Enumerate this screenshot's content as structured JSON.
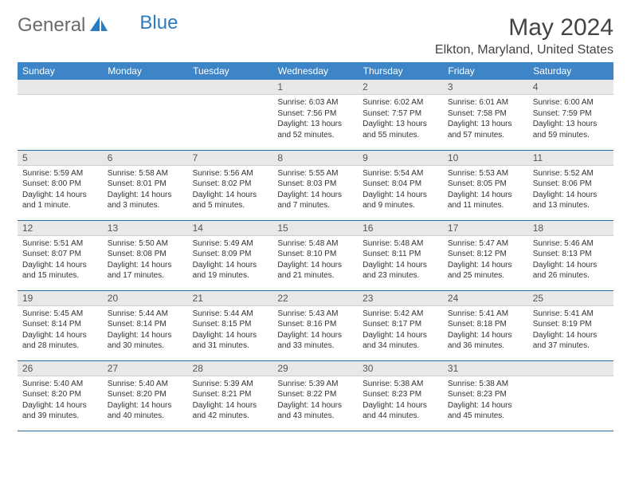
{
  "logo": {
    "general": "General",
    "blue": "Blue"
  },
  "title": "May 2024",
  "location": "Elkton, Maryland, United States",
  "colors": {
    "header_bg": "#3d85c6",
    "header_text": "#ffffff",
    "daynum_bg": "#e8e8e8",
    "row_border": "#2b6aa8",
    "logo_accent": "#2b7bc0"
  },
  "weekdays": [
    "Sunday",
    "Monday",
    "Tuesday",
    "Wednesday",
    "Thursday",
    "Friday",
    "Saturday"
  ],
  "weeks": [
    [
      {
        "n": "",
        "sr": "",
        "ss": "",
        "dl": ""
      },
      {
        "n": "",
        "sr": "",
        "ss": "",
        "dl": ""
      },
      {
        "n": "",
        "sr": "",
        "ss": "",
        "dl": ""
      },
      {
        "n": "1",
        "sr": "Sunrise: 6:03 AM",
        "ss": "Sunset: 7:56 PM",
        "dl": "Daylight: 13 hours and 52 minutes."
      },
      {
        "n": "2",
        "sr": "Sunrise: 6:02 AM",
        "ss": "Sunset: 7:57 PM",
        "dl": "Daylight: 13 hours and 55 minutes."
      },
      {
        "n": "3",
        "sr": "Sunrise: 6:01 AM",
        "ss": "Sunset: 7:58 PM",
        "dl": "Daylight: 13 hours and 57 minutes."
      },
      {
        "n": "4",
        "sr": "Sunrise: 6:00 AM",
        "ss": "Sunset: 7:59 PM",
        "dl": "Daylight: 13 hours and 59 minutes."
      }
    ],
    [
      {
        "n": "5",
        "sr": "Sunrise: 5:59 AM",
        "ss": "Sunset: 8:00 PM",
        "dl": "Daylight: 14 hours and 1 minute."
      },
      {
        "n": "6",
        "sr": "Sunrise: 5:58 AM",
        "ss": "Sunset: 8:01 PM",
        "dl": "Daylight: 14 hours and 3 minutes."
      },
      {
        "n": "7",
        "sr": "Sunrise: 5:56 AM",
        "ss": "Sunset: 8:02 PM",
        "dl": "Daylight: 14 hours and 5 minutes."
      },
      {
        "n": "8",
        "sr": "Sunrise: 5:55 AM",
        "ss": "Sunset: 8:03 PM",
        "dl": "Daylight: 14 hours and 7 minutes."
      },
      {
        "n": "9",
        "sr": "Sunrise: 5:54 AM",
        "ss": "Sunset: 8:04 PM",
        "dl": "Daylight: 14 hours and 9 minutes."
      },
      {
        "n": "10",
        "sr": "Sunrise: 5:53 AM",
        "ss": "Sunset: 8:05 PM",
        "dl": "Daylight: 14 hours and 11 minutes."
      },
      {
        "n": "11",
        "sr": "Sunrise: 5:52 AM",
        "ss": "Sunset: 8:06 PM",
        "dl": "Daylight: 14 hours and 13 minutes."
      }
    ],
    [
      {
        "n": "12",
        "sr": "Sunrise: 5:51 AM",
        "ss": "Sunset: 8:07 PM",
        "dl": "Daylight: 14 hours and 15 minutes."
      },
      {
        "n": "13",
        "sr": "Sunrise: 5:50 AM",
        "ss": "Sunset: 8:08 PM",
        "dl": "Daylight: 14 hours and 17 minutes."
      },
      {
        "n": "14",
        "sr": "Sunrise: 5:49 AM",
        "ss": "Sunset: 8:09 PM",
        "dl": "Daylight: 14 hours and 19 minutes."
      },
      {
        "n": "15",
        "sr": "Sunrise: 5:48 AM",
        "ss": "Sunset: 8:10 PM",
        "dl": "Daylight: 14 hours and 21 minutes."
      },
      {
        "n": "16",
        "sr": "Sunrise: 5:48 AM",
        "ss": "Sunset: 8:11 PM",
        "dl": "Daylight: 14 hours and 23 minutes."
      },
      {
        "n": "17",
        "sr": "Sunrise: 5:47 AM",
        "ss": "Sunset: 8:12 PM",
        "dl": "Daylight: 14 hours and 25 minutes."
      },
      {
        "n": "18",
        "sr": "Sunrise: 5:46 AM",
        "ss": "Sunset: 8:13 PM",
        "dl": "Daylight: 14 hours and 26 minutes."
      }
    ],
    [
      {
        "n": "19",
        "sr": "Sunrise: 5:45 AM",
        "ss": "Sunset: 8:14 PM",
        "dl": "Daylight: 14 hours and 28 minutes."
      },
      {
        "n": "20",
        "sr": "Sunrise: 5:44 AM",
        "ss": "Sunset: 8:14 PM",
        "dl": "Daylight: 14 hours and 30 minutes."
      },
      {
        "n": "21",
        "sr": "Sunrise: 5:44 AM",
        "ss": "Sunset: 8:15 PM",
        "dl": "Daylight: 14 hours and 31 minutes."
      },
      {
        "n": "22",
        "sr": "Sunrise: 5:43 AM",
        "ss": "Sunset: 8:16 PM",
        "dl": "Daylight: 14 hours and 33 minutes."
      },
      {
        "n": "23",
        "sr": "Sunrise: 5:42 AM",
        "ss": "Sunset: 8:17 PM",
        "dl": "Daylight: 14 hours and 34 minutes."
      },
      {
        "n": "24",
        "sr": "Sunrise: 5:41 AM",
        "ss": "Sunset: 8:18 PM",
        "dl": "Daylight: 14 hours and 36 minutes."
      },
      {
        "n": "25",
        "sr": "Sunrise: 5:41 AM",
        "ss": "Sunset: 8:19 PM",
        "dl": "Daylight: 14 hours and 37 minutes."
      }
    ],
    [
      {
        "n": "26",
        "sr": "Sunrise: 5:40 AM",
        "ss": "Sunset: 8:20 PM",
        "dl": "Daylight: 14 hours and 39 minutes."
      },
      {
        "n": "27",
        "sr": "Sunrise: 5:40 AM",
        "ss": "Sunset: 8:20 PM",
        "dl": "Daylight: 14 hours and 40 minutes."
      },
      {
        "n": "28",
        "sr": "Sunrise: 5:39 AM",
        "ss": "Sunset: 8:21 PM",
        "dl": "Daylight: 14 hours and 42 minutes."
      },
      {
        "n": "29",
        "sr": "Sunrise: 5:39 AM",
        "ss": "Sunset: 8:22 PM",
        "dl": "Daylight: 14 hours and 43 minutes."
      },
      {
        "n": "30",
        "sr": "Sunrise: 5:38 AM",
        "ss": "Sunset: 8:23 PM",
        "dl": "Daylight: 14 hours and 44 minutes."
      },
      {
        "n": "31",
        "sr": "Sunrise: 5:38 AM",
        "ss": "Sunset: 8:23 PM",
        "dl": "Daylight: 14 hours and 45 minutes."
      },
      {
        "n": "",
        "sr": "",
        "ss": "",
        "dl": ""
      }
    ]
  ]
}
